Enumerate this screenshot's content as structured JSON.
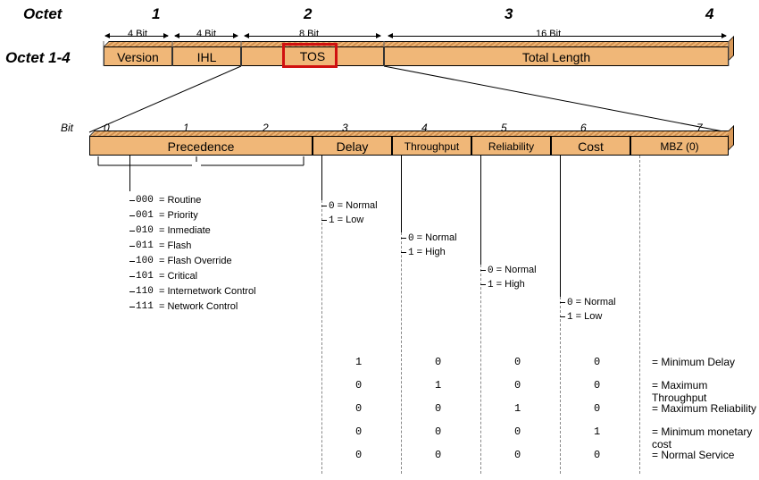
{
  "header": {
    "octet_label": "Octet",
    "octet_nums": [
      "1",
      "2",
      "3",
      "4"
    ],
    "row_label": "Octet 1-4"
  },
  "top_fields": {
    "brackets": [
      "4 Bit",
      "4 Bit",
      "8 Bit",
      "16 Bit"
    ],
    "fields": [
      "Version",
      "IHL",
      "TOS",
      "Total Length"
    ]
  },
  "colors": {
    "field_fill": "#f0b778",
    "field_shade": "#d89858",
    "highlight": "#d01010",
    "background": "#ffffff",
    "dash": "#888888"
  },
  "bits_row": {
    "label": "Bit",
    "nums": [
      "0",
      "1",
      "2",
      "3",
      "4",
      "5",
      "6",
      "7"
    ],
    "fields": [
      "Precedence",
      "Delay",
      "Throughput",
      "Reliability",
      "Cost",
      "MBZ (0)"
    ]
  },
  "precedence": {
    "items": [
      {
        "code": "000",
        "name": "Routine"
      },
      {
        "code": "001",
        "name": "Priority"
      },
      {
        "code": "010",
        "name": "Inmediate"
      },
      {
        "code": "011",
        "name": "Flash"
      },
      {
        "code": "100",
        "name": "Flash Override"
      },
      {
        "code": "101",
        "name": "Critical"
      },
      {
        "code": "110",
        "name": "Internetwork Control"
      },
      {
        "code": "111",
        "name": "Network Control"
      }
    ]
  },
  "delay": {
    "items": [
      {
        "code": "0",
        "name": "Normal"
      },
      {
        "code": "1",
        "name": "Low"
      }
    ]
  },
  "throughput": {
    "items": [
      {
        "code": "0",
        "name": "Normal"
      },
      {
        "code": "1",
        "name": "High"
      }
    ]
  },
  "reliability": {
    "items": [
      {
        "code": "0",
        "name": "Normal"
      },
      {
        "code": "1",
        "name": "High"
      }
    ]
  },
  "cost": {
    "items": [
      {
        "code": "0",
        "name": "Normal"
      },
      {
        "code": "1",
        "name": "Low"
      }
    ]
  },
  "combo_table": {
    "rows": [
      {
        "vals": [
          "1",
          "0",
          "0",
          "0"
        ],
        "label": "Minimum Delay"
      },
      {
        "vals": [
          "0",
          "1",
          "0",
          "0"
        ],
        "label": "Maximum Throughput"
      },
      {
        "vals": [
          "0",
          "0",
          "1",
          "0"
        ],
        "label": "Maximum Reliability"
      },
      {
        "vals": [
          "0",
          "0",
          "0",
          "1"
        ],
        "label": "Minimum monetary cost"
      },
      {
        "vals": [
          "0",
          "0",
          "0",
          "0"
        ],
        "label": "Normal Service"
      }
    ]
  }
}
